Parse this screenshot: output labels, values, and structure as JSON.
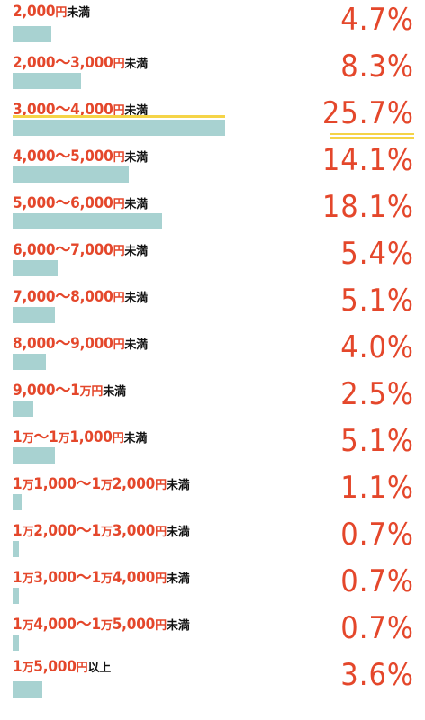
{
  "chart_data": {
    "type": "bar",
    "categories": [
      "2,000円未満",
      "2,000～3,000円未満",
      "3,000～4,000円未満",
      "4,000～5,000円未満",
      "5,000～6,000円未満",
      "6,000～7,000円未満",
      "7,000～8,000円未満",
      "8,000～9,000円未満",
      "9,000～1万円未満",
      "1万～1万1,000円未満",
      "1万1,000～1万2,000円未満",
      "1万2,000～1万3,000円未満",
      "1万3,000～1万4,000円未満",
      "1万4,000～1万5,000円未満",
      "1万5,000円以上"
    ],
    "values": [
      4.7,
      8.3,
      25.7,
      14.1,
      18.1,
      5.4,
      5.1,
      4.0,
      2.5,
      5.1,
      1.1,
      0.7,
      0.7,
      0.7,
      3.6
    ],
    "value_labels": [
      "4.7%",
      "8.3%",
      "25.7%",
      "14.1%",
      "18.1%",
      "5.4%",
      "5.1%",
      "4.0%",
      "2.5%",
      "5.1%",
      "1.1%",
      "0.7%",
      "0.7%",
      "0.7%",
      "3.6%"
    ],
    "highlight_category": "3,000～4,000円未満",
    "label_parts": [
      [
        [
          "2,000",
          "n"
        ],
        [
          "円",
          "u"
        ],
        [
          "未満",
          "t"
        ]
      ],
      [
        [
          "2,000～3,000",
          "n"
        ],
        [
          "円",
          "u"
        ],
        [
          "未満",
          "t"
        ]
      ],
      [
        [
          "3,000～4,000",
          "n"
        ],
        [
          "円",
          "u"
        ],
        [
          "未満",
          "t"
        ]
      ],
      [
        [
          "4,000～5,000",
          "n"
        ],
        [
          "円",
          "u"
        ],
        [
          "未満",
          "t"
        ]
      ],
      [
        [
          "5,000～6,000",
          "n"
        ],
        [
          "円",
          "u"
        ],
        [
          "未満",
          "t"
        ]
      ],
      [
        [
          "6,000～7,000",
          "n"
        ],
        [
          "円",
          "u"
        ],
        [
          "未満",
          "t"
        ]
      ],
      [
        [
          "7,000～8,000",
          "n"
        ],
        [
          "円",
          "u"
        ],
        [
          "未満",
          "t"
        ]
      ],
      [
        [
          "8,000～9,000",
          "n"
        ],
        [
          "円",
          "u"
        ],
        [
          "未満",
          "t"
        ]
      ],
      [
        [
          "9,000～1",
          "n"
        ],
        [
          "万円",
          "u"
        ],
        [
          "未満",
          "t"
        ]
      ],
      [
        [
          "1",
          "n"
        ],
        [
          "万",
          "u"
        ],
        [
          "～1",
          "n"
        ],
        [
          "万",
          "u"
        ],
        [
          "1,000",
          "n"
        ],
        [
          "円",
          "u"
        ],
        [
          "未満",
          "t"
        ]
      ],
      [
        [
          "1",
          "n"
        ],
        [
          "万",
          "u"
        ],
        [
          "1,000～1",
          "n"
        ],
        [
          "万",
          "u"
        ],
        [
          "2,000",
          "n"
        ],
        [
          "円",
          "u"
        ],
        [
          "未満",
          "t"
        ]
      ],
      [
        [
          "1",
          "n"
        ],
        [
          "万",
          "u"
        ],
        [
          "2,000～1",
          "n"
        ],
        [
          "万",
          "u"
        ],
        [
          "3,000",
          "n"
        ],
        [
          "円",
          "u"
        ],
        [
          "未満",
          "t"
        ]
      ],
      [
        [
          "1",
          "n"
        ],
        [
          "万",
          "u"
        ],
        [
          "3,000～1",
          "n"
        ],
        [
          "万",
          "u"
        ],
        [
          "4,000",
          "n"
        ],
        [
          "円",
          "u"
        ],
        [
          "未満",
          "t"
        ]
      ],
      [
        [
          "1",
          "n"
        ],
        [
          "万",
          "u"
        ],
        [
          "4,000～1",
          "n"
        ],
        [
          "万",
          "u"
        ],
        [
          "5,000",
          "n"
        ],
        [
          "円",
          "u"
        ],
        [
          "未満",
          "t"
        ]
      ],
      [
        [
          "1",
          "n"
        ],
        [
          "万",
          "u"
        ],
        [
          "5,000",
          "n"
        ],
        [
          "円",
          "u"
        ],
        [
          "以上",
          "t"
        ]
      ]
    ],
    "bar_color": "#a8d2d1",
    "label_color": "#e4472b",
    "value_color": "#e4472b",
    "highlight_color": "#f5d447",
    "xlim": [
      0,
      25.7
    ]
  }
}
